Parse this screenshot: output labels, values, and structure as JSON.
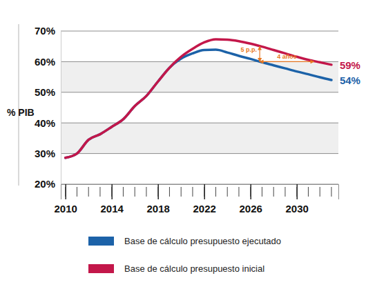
{
  "chart_data": {
    "type": "line",
    "ylabel": "% PIB",
    "x": [
      2010,
      2011,
      2012,
      2013,
      2014,
      2015,
      2016,
      2017,
      2018,
      2019,
      2020,
      2021,
      2022,
      2023,
      2024,
      2025,
      2026,
      2027,
      2028,
      2029,
      2030,
      2031,
      2032,
      2033
    ],
    "series": [
      {
        "name": "Base de cálculo presupuesto ejecutado",
        "color": "#1c62a8",
        "values": [
          28.6,
          30.0,
          34.5,
          36.3,
          38.7,
          41.2,
          45.5,
          48.8,
          53.5,
          58.0,
          61.0,
          62.7,
          63.8,
          63.9,
          63.0,
          61.9,
          60.9,
          59.8,
          58.8,
          57.8,
          56.8,
          55.9,
          54.9,
          54.0
        ],
        "value_labels": [
          null,
          null,
          null,
          null,
          null,
          null,
          null,
          null,
          null,
          null,
          null,
          null,
          null,
          null,
          null,
          null,
          null,
          null,
          null,
          null,
          null,
          null,
          null,
          "54%"
        ]
      },
      {
        "name": "Base de cálculo presupuesto inicial",
        "color": "#c3174a",
        "values": [
          28.6,
          30.0,
          34.5,
          36.3,
          38.7,
          41.2,
          45.5,
          48.8,
          53.5,
          58.0,
          61.6,
          64.2,
          66.3,
          67.3,
          67.2,
          66.7,
          65.9,
          64.9,
          63.8,
          62.7,
          61.6,
          60.6,
          59.8,
          59.0
        ],
        "value_labels": [
          null,
          null,
          null,
          null,
          null,
          null,
          null,
          null,
          null,
          null,
          null,
          null,
          null,
          null,
          null,
          null,
          null,
          null,
          null,
          null,
          null,
          null,
          null,
          "59%"
        ]
      }
    ],
    "data_labels": true,
    "xlim": [
      2009.6,
      2033.6
    ],
    "xticks": [
      2010,
      2014,
      2018,
      2022,
      2026,
      2030
    ],
    "ylim": [
      20,
      70
    ],
    "yticks": [
      {
        "value": 20,
        "label": "20%"
      },
      {
        "value": 30,
        "label": "30%"
      },
      {
        "value": 40,
        "label": "40%"
      },
      {
        "value": 50,
        "label": "50%"
      },
      {
        "value": 60,
        "label": "60%"
      },
      {
        "value": 70,
        "label": "70%"
      }
    ],
    "grid": true,
    "legend": "bottom",
    "annotations": [
      {
        "text": "5 p.p.",
        "x": [
          2026.8,
          2026.8
        ],
        "y": [
          60,
          65
        ]
      },
      {
        "text": "4 años",
        "x": [
          2026.8,
          2031.5
        ],
        "y": [
          60,
          60
        ]
      }
    ]
  }
}
